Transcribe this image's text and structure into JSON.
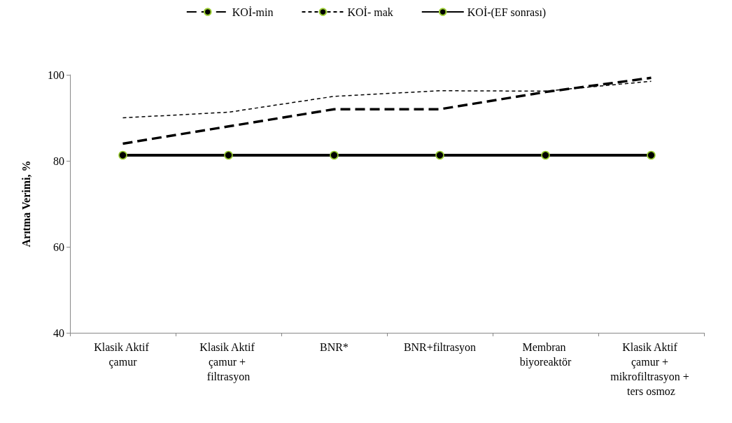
{
  "chart_data": {
    "type": "line",
    "ylabel": "Arıtma Verimi, %",
    "categories": [
      "Klasik Aktif çamur",
      "Klasik Aktif çamur + filtrasyon",
      "BNR*",
      "BNR+filtrasyon",
      "Membran biyoreaktör",
      "Klasik Aktif çamur + mikrofiltrasyon + ters osmoz"
    ],
    "series": [
      {
        "name": "KOİ-min",
        "color": "#000000",
        "line_style": "dashed",
        "marker": "none",
        "values": [
          84,
          88,
          92,
          92,
          96,
          99.3
        ]
      },
      {
        "name": "KOİ- mak",
        "color": "#000000",
        "line_style": "dotted",
        "marker": "none",
        "values": [
          90,
          91.3,
          95,
          96.3,
          96.2,
          98.5
        ]
      },
      {
        "name": "KOİ-(EF sonrası)",
        "color": "#000000",
        "line_style": "solid",
        "marker": "circle",
        "values": [
          81.3,
          81.3,
          81.3,
          81.3,
          81.3,
          81.3
        ]
      }
    ],
    "ylim": [
      40,
      100
    ],
    "yticks": [
      40,
      60,
      80,
      100
    ],
    "grid": false,
    "legend": "top"
  }
}
